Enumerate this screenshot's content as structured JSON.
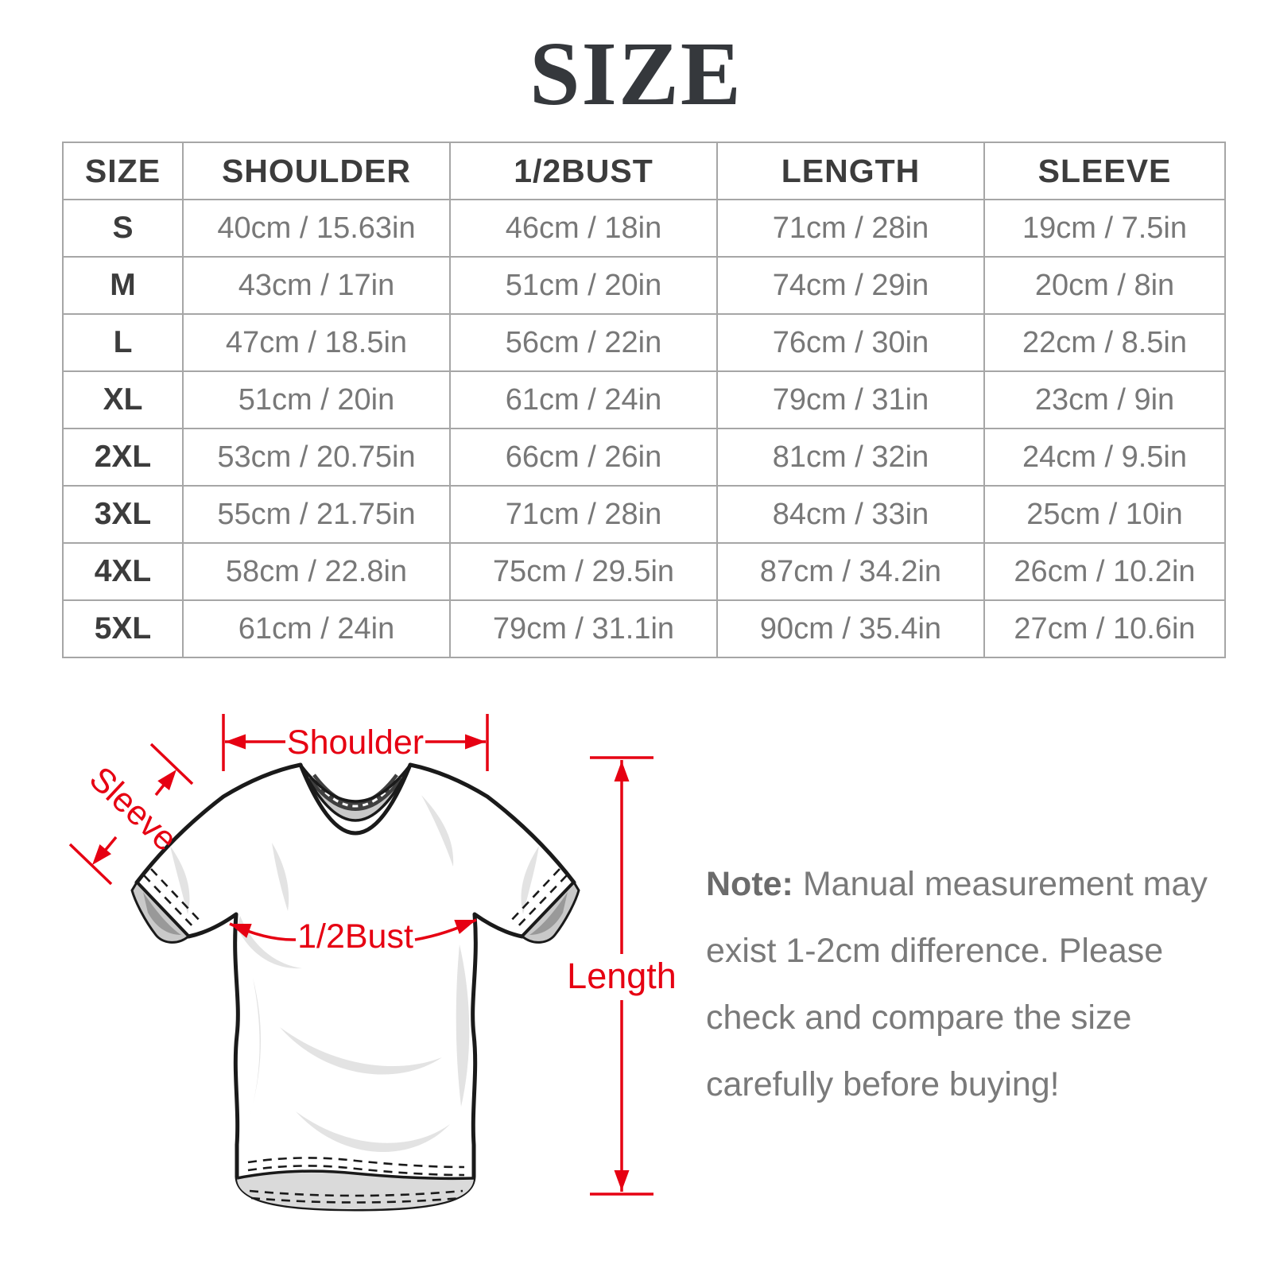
{
  "title": "SIZE",
  "table": {
    "headers": [
      "SIZE",
      "SHOULDER",
      "1/2BUST",
      "LENGTH",
      "SLEEVE"
    ],
    "rows": [
      [
        "S",
        "40cm / 15.63in",
        "46cm / 18in",
        "71cm / 28in",
        "19cm / 7.5in"
      ],
      [
        "M",
        "43cm / 17in",
        "51cm / 20in",
        "74cm / 29in",
        "20cm / 8in"
      ],
      [
        "L",
        "47cm / 18.5in",
        "56cm / 22in",
        "76cm / 30in",
        "22cm / 8.5in"
      ],
      [
        "XL",
        "51cm / 20in",
        "61cm / 24in",
        "79cm / 31in",
        "23cm / 9in"
      ],
      [
        "2XL",
        "53cm / 20.75in",
        "66cm / 26in",
        "81cm / 32in",
        "24cm / 9.5in"
      ],
      [
        "3XL",
        "55cm / 21.75in",
        "71cm / 28in",
        "84cm / 33in",
        "25cm / 10in"
      ],
      [
        "4XL",
        "58cm / 22.8in",
        "75cm / 29.5in",
        "87cm / 34.2in",
        "26cm / 10.2in"
      ],
      [
        "5XL",
        "61cm / 24in",
        "79cm / 31.1in",
        "90cm / 35.4in",
        "27cm / 10.6in"
      ]
    ]
  },
  "diagram": {
    "labels": {
      "shoulder": "Shoulder",
      "sleeve": "Sleeve",
      "half_bust": "1/2Bust",
      "length": "Length"
    },
    "accent_color": "#e60012"
  },
  "note": {
    "label": "Note:",
    "text": " Manual measurement may exist 1-2cm difference. Please check and compare the size carefully before buying!"
  }
}
